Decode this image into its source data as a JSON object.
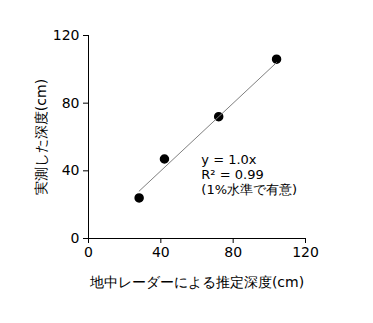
{
  "chart_data": {
    "type": "scatter",
    "x_label": "地中レーダーによる推定深度(cm)",
    "y_label": "実測した深度(cm)",
    "xlim": [
      0,
      120
    ],
    "xticks": [
      0,
      40,
      80,
      120
    ],
    "ylim": [
      0,
      120
    ],
    "yticks": [
      0,
      40,
      80,
      120
    ],
    "grid": false,
    "series": [
      {
        "type": "scatter",
        "color": "#000000",
        "marker": "circle",
        "x": [
          28,
          42,
          72,
          104
        ],
        "values": [
          24,
          47,
          72,
          106
        ]
      },
      {
        "type": "line",
        "color": "#808080",
        "line_style": "solid",
        "x": [
          28,
          104
        ],
        "values": [
          28,
          104
        ]
      }
    ],
    "annotations": [
      "y = 1.0x",
      "R² = 0.99",
      "(1%水準で有意)"
    ]
  }
}
